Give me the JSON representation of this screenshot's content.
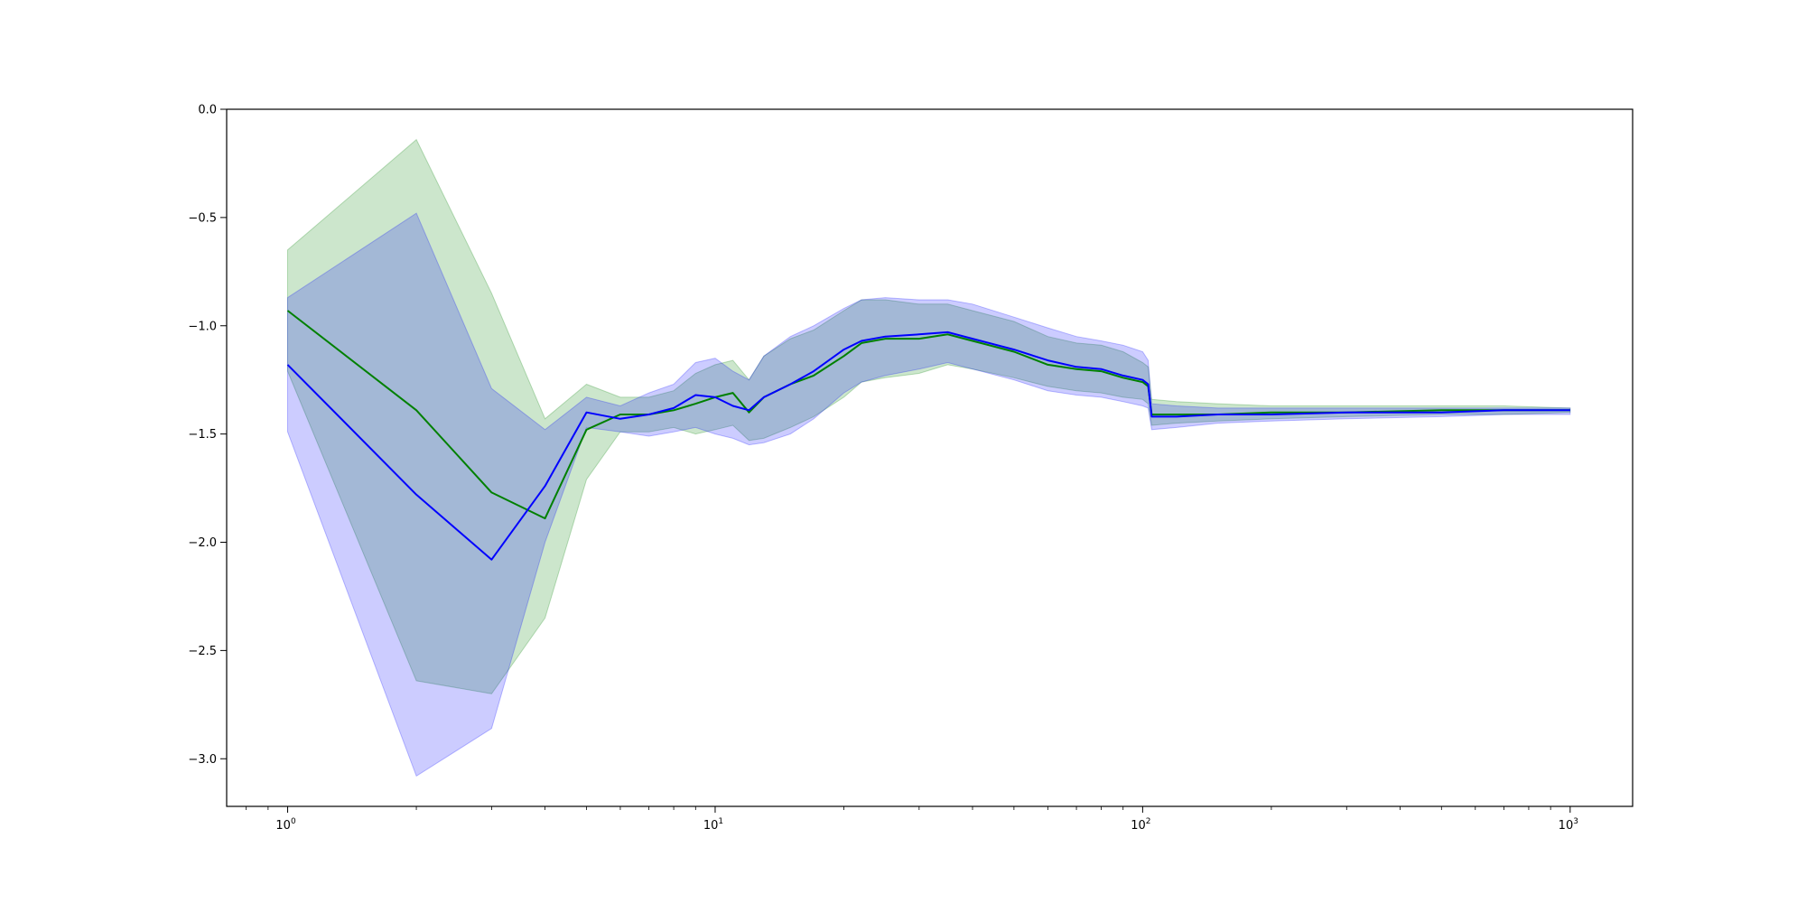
{
  "chart_data": {
    "type": "line",
    "title": "",
    "xlabel": "",
    "ylabel": "",
    "xscale": "log",
    "xlim": [
      0.72,
      1400
    ],
    "ylim": [
      -3.22,
      0.0
    ],
    "grid": false,
    "legend": "none",
    "yticks": [
      0.0,
      -0.5,
      -1.0,
      -1.5,
      -2.0,
      -2.5,
      -3.0
    ],
    "ytick_labels": [
      "0.0",
      "−0.5",
      "−1.0",
      "−1.5",
      "−2.0",
      "−2.5",
      "−3.0"
    ],
    "xticks": [
      1,
      10,
      100,
      1000
    ],
    "xtick_labels": [
      {
        "base": "10",
        "exp": "0"
      },
      {
        "base": "10",
        "exp": "1"
      },
      {
        "base": "10",
        "exp": "2"
      },
      {
        "base": "10",
        "exp": "3"
      }
    ],
    "series": [
      {
        "color": "#008000",
        "band_color": "#008000",
        "band_opacity": 0.2,
        "x": [
          1,
          2,
          3,
          4,
          5,
          6,
          7,
          8,
          9,
          10,
          11,
          12,
          13,
          15,
          17,
          20,
          22,
          25,
          30,
          35,
          40,
          50,
          60,
          70,
          80,
          90,
          100,
          103,
          105,
          120,
          150,
          200,
          300,
          500,
          700,
          1000
        ],
        "y": [
          -0.93,
          -1.39,
          -1.77,
          -1.89,
          -1.48,
          -1.41,
          -1.41,
          -1.39,
          -1.36,
          -1.33,
          -1.31,
          -1.4,
          -1.33,
          -1.27,
          -1.23,
          -1.14,
          -1.08,
          -1.06,
          -1.06,
          -1.04,
          -1.07,
          -1.12,
          -1.18,
          -1.2,
          -1.21,
          -1.24,
          -1.26,
          -1.28,
          -1.41,
          -1.41,
          -1.41,
          -1.4,
          -1.4,
          -1.39,
          -1.39,
          -1.39
        ],
        "upper": [
          -0.65,
          -0.14,
          -0.85,
          -1.43,
          -1.27,
          -1.33,
          -1.33,
          -1.3,
          -1.22,
          -1.18,
          -1.16,
          -1.25,
          -1.14,
          -1.06,
          -1.02,
          -0.93,
          -0.88,
          -0.88,
          -0.9,
          -0.9,
          -0.93,
          -0.98,
          -1.05,
          -1.08,
          -1.09,
          -1.12,
          -1.17,
          -1.19,
          -1.34,
          -1.35,
          -1.36,
          -1.37,
          -1.37,
          -1.37,
          -1.37,
          -1.38
        ],
        "lower": [
          -1.21,
          -2.64,
          -2.7,
          -2.35,
          -1.71,
          -1.49,
          -1.49,
          -1.47,
          -1.5,
          -1.48,
          -1.46,
          -1.53,
          -1.52,
          -1.47,
          -1.42,
          -1.33,
          -1.26,
          -1.24,
          -1.22,
          -1.18,
          -1.2,
          -1.24,
          -1.28,
          -1.3,
          -1.31,
          -1.33,
          -1.34,
          -1.36,
          -1.46,
          -1.45,
          -1.44,
          -1.43,
          -1.42,
          -1.41,
          -1.41,
          -1.4
        ]
      },
      {
        "color": "#0000ff",
        "band_color": "#0000ff",
        "band_opacity": 0.2,
        "x": [
          1,
          2,
          3,
          4,
          5,
          6,
          7,
          8,
          9,
          10,
          11,
          12,
          13,
          15,
          17,
          20,
          22,
          25,
          30,
          35,
          40,
          50,
          60,
          70,
          80,
          90,
          100,
          103,
          105,
          120,
          150,
          200,
          300,
          500,
          700,
          1000
        ],
        "y": [
          -1.18,
          -1.78,
          -2.08,
          -1.74,
          -1.4,
          -1.43,
          -1.41,
          -1.38,
          -1.32,
          -1.33,
          -1.37,
          -1.39,
          -1.33,
          -1.27,
          -1.21,
          -1.11,
          -1.07,
          -1.05,
          -1.04,
          -1.03,
          -1.06,
          -1.11,
          -1.16,
          -1.19,
          -1.2,
          -1.23,
          -1.25,
          -1.27,
          -1.42,
          -1.42,
          -1.41,
          -1.41,
          -1.4,
          -1.4,
          -1.39,
          -1.39
        ],
        "upper": [
          -0.87,
          -0.48,
          -1.29,
          -1.48,
          -1.33,
          -1.37,
          -1.31,
          -1.27,
          -1.17,
          -1.15,
          -1.21,
          -1.25,
          -1.14,
          -1.05,
          -1.0,
          -0.92,
          -0.88,
          -0.87,
          -0.88,
          -0.88,
          -0.9,
          -0.96,
          -1.01,
          -1.05,
          -1.07,
          -1.09,
          -1.12,
          -1.16,
          -1.36,
          -1.37,
          -1.38,
          -1.38,
          -1.38,
          -1.38,
          -1.38,
          -1.38
        ],
        "lower": [
          -1.49,
          -3.08,
          -2.86,
          -2.0,
          -1.47,
          -1.49,
          -1.51,
          -1.49,
          -1.47,
          -1.5,
          -1.52,
          -1.55,
          -1.54,
          -1.5,
          -1.43,
          -1.31,
          -1.26,
          -1.23,
          -1.2,
          -1.17,
          -1.2,
          -1.25,
          -1.3,
          -1.32,
          -1.33,
          -1.35,
          -1.37,
          -1.38,
          -1.48,
          -1.47,
          -1.45,
          -1.44,
          -1.43,
          -1.42,
          -1.41,
          -1.41
        ]
      }
    ]
  }
}
